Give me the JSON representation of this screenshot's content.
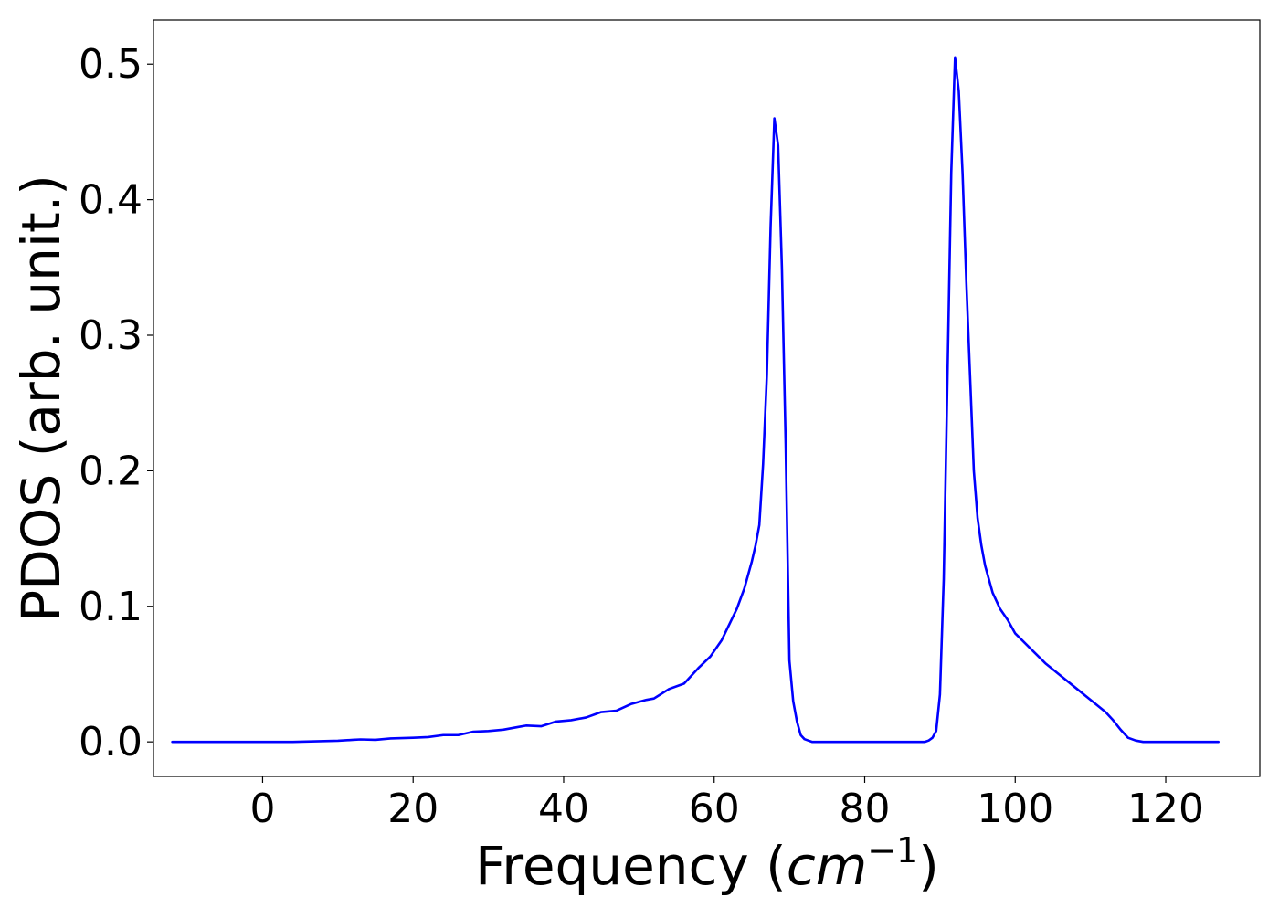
{
  "chart_data": {
    "type": "line",
    "title": "",
    "xlabel_main": "Frequency (",
    "xlabel_unit": "cm",
    "xlabel_exp": "−1",
    "xlabel_close": ")",
    "ylabel": "PDOS (arb. unit.)",
    "xlim": [
      -14.5,
      132.5
    ],
    "ylim": [
      -0.0255,
      0.5325
    ],
    "xticks": [
      0,
      20,
      40,
      60,
      80,
      100,
      120
    ],
    "xtick_labels": [
      "0",
      "20",
      "40",
      "60",
      "80",
      "100",
      "120"
    ],
    "yticks": [
      0.0,
      0.1,
      0.2,
      0.3,
      0.4,
      0.5
    ],
    "ytick_labels": [
      "0.0",
      "0.1",
      "0.2",
      "0.3",
      "0.4",
      "0.5"
    ],
    "grid": false,
    "line_color": "#0000ff",
    "series": [
      {
        "x": [
          -12,
          0,
          4,
          10,
          12,
          13,
          15,
          17,
          20,
          22,
          24,
          26,
          28,
          30,
          32,
          34,
          35,
          37,
          39,
          41,
          43,
          45,
          47,
          49,
          51,
          52,
          54,
          56,
          58,
          59.5,
          61,
          63,
          64,
          65,
          65.5,
          66,
          66.5,
          67,
          67.5,
          68,
          68.5,
          69,
          69.5,
          70,
          70.5,
          71,
          71.5,
          72,
          72.5,
          73,
          80,
          88,
          88.5,
          89,
          89.5,
          90,
          90.5,
          91,
          91.5,
          92,
          92.5,
          93,
          93.5,
          94,
          94.5,
          95,
          95.5,
          96,
          96.5,
          97,
          97.5,
          98,
          99,
          100,
          102,
          104,
          106,
          108,
          110,
          112,
          113,
          114,
          115,
          116,
          117,
          118,
          127
        ],
        "y": [
          0.0,
          0.0,
          0.0,
          0.0008,
          0.0015,
          0.0018,
          0.0015,
          0.0025,
          0.003,
          0.0035,
          0.005,
          0.005,
          0.0075,
          0.008,
          0.009,
          0.011,
          0.012,
          0.0115,
          0.015,
          0.016,
          0.018,
          0.022,
          0.023,
          0.028,
          0.031,
          0.032,
          0.039,
          0.043,
          0.055,
          0.063,
          0.075,
          0.098,
          0.113,
          0.133,
          0.145,
          0.16,
          0.205,
          0.27,
          0.38,
          0.46,
          0.44,
          0.35,
          0.22,
          0.06,
          0.03,
          0.015,
          0.005,
          0.002,
          0.001,
          0.0,
          0.0,
          0.0,
          0.001,
          0.003,
          0.008,
          0.035,
          0.12,
          0.27,
          0.42,
          0.505,
          0.48,
          0.42,
          0.34,
          0.27,
          0.2,
          0.165,
          0.145,
          0.13,
          0.12,
          0.11,
          0.104,
          0.098,
          0.09,
          0.08,
          0.069,
          0.058,
          0.049,
          0.04,
          0.031,
          0.022,
          0.016,
          0.009,
          0.003,
          0.001,
          0.0,
          0.0,
          0.0
        ]
      }
    ]
  }
}
